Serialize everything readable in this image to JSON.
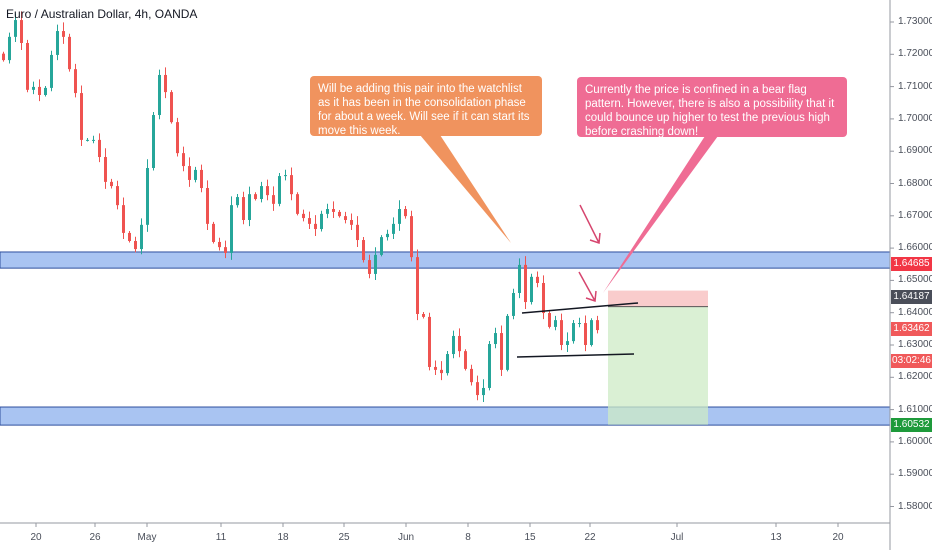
{
  "header": {
    "title": "Euro / Australian Dollar, 4h, OANDA"
  },
  "annotations": {
    "orange_note": "Will be adding this pair into the watchlist as it has been in the consolidation phase for about a week. Will see if it can start its move this week.",
    "pink_note": "Currently the price is confined in a bear flag pattern. However, there is also a possibility that it could bounce up higher to test the previous high before crashing down!"
  },
  "price_tags": {
    "stop": "1.64685",
    "entry": "1.64187",
    "last": "1.63462",
    "countdown": "03:02:46",
    "target": "1.60532"
  },
  "colors": {
    "up": "#26a69a",
    "down": "#ef5350",
    "zone": "#a9c4f2",
    "zone_border": "#2e4f9e",
    "stop_fill": "#f8c6c6",
    "target_fill": "#cdebc6",
    "orange": "#f0935e",
    "pink": "#ef6c94",
    "stop_tag": "#f23645",
    "entry_tag": "#4a4e59",
    "last_tag": "#f0595a",
    "target_tag": "#1e9a3b"
  },
  "chart_data": {
    "type": "candlestick",
    "symbol": "Euro / Australian Dollar",
    "interval": "4h",
    "ylim": [
      1.575,
      1.736
    ],
    "y_ticks": [
      "1.73000",
      "1.72000",
      "1.71000",
      "1.70000",
      "1.69000",
      "1.68000",
      "1.67000",
      "1.66000",
      "1.65000",
      "1.64000",
      "1.63000",
      "1.62000",
      "1.61000",
      "1.60000",
      "1.59000",
      "1.58000"
    ],
    "x_ticks": [
      "20",
      "26",
      "May",
      "11",
      "18",
      "25",
      "Jun",
      "8",
      "15",
      "22",
      "Jul",
      "13",
      "20"
    ],
    "grid": false,
    "closes": [
      1.7182,
      1.7254,
      1.7306,
      1.7235,
      1.709,
      1.7099,
      1.7074,
      1.7096,
      1.7198,
      1.7272,
      1.7254,
      1.7154,
      1.708,
      1.6935,
      1.6935,
      1.6935,
      1.6882,
      1.6805,
      1.6792,
      1.6733,
      1.6647,
      1.6622,
      1.6597,
      1.6672,
      1.6848,
      1.7012,
      1.7136,
      1.7083,
      1.699,
      1.6894,
      1.6854,
      1.6811,
      1.6842,
      1.6786,
      1.6675,
      1.6619,
      1.6603,
      1.6585,
      1.6733,
      1.6758,
      1.6687,
      1.6767,
      1.6752,
      1.6792,
      1.6764,
      1.6737,
      1.6823,
      1.6826,
      1.6767,
      1.6706,
      1.6693,
      1.6675,
      1.6659,
      1.6706,
      1.6721,
      1.6712,
      1.6699,
      1.6687,
      1.6672,
      1.6625,
      1.6563,
      1.652,
      1.6579,
      1.6634,
      1.6644,
      1.6675,
      1.6721,
      1.6699,
      1.6572,
      1.6396,
      1.6387,
      1.6232,
      1.6223,
      1.6213,
      1.6272,
      1.6328,
      1.6281,
      1.6226,
      1.6185,
      1.6145,
      1.6167,
      1.6303,
      1.6337,
      1.6223,
      1.639,
      1.6461,
      1.6548,
      1.6433,
      1.6511,
      1.6492,
      1.6399,
      1.6356,
      1.6377,
      1.63,
      1.6312,
      1.6368,
      1.6368,
      1.63,
      1.6377,
      1.63462
    ],
    "support_resistance_zones": [
      {
        "top": 1.6588,
        "bottom": 1.6538
      },
      {
        "top": 1.6108,
        "bottom": 1.6052
      }
    ],
    "short_position": {
      "entry": 1.64187,
      "stop": 1.64685,
      "target": 1.60532
    }
  }
}
